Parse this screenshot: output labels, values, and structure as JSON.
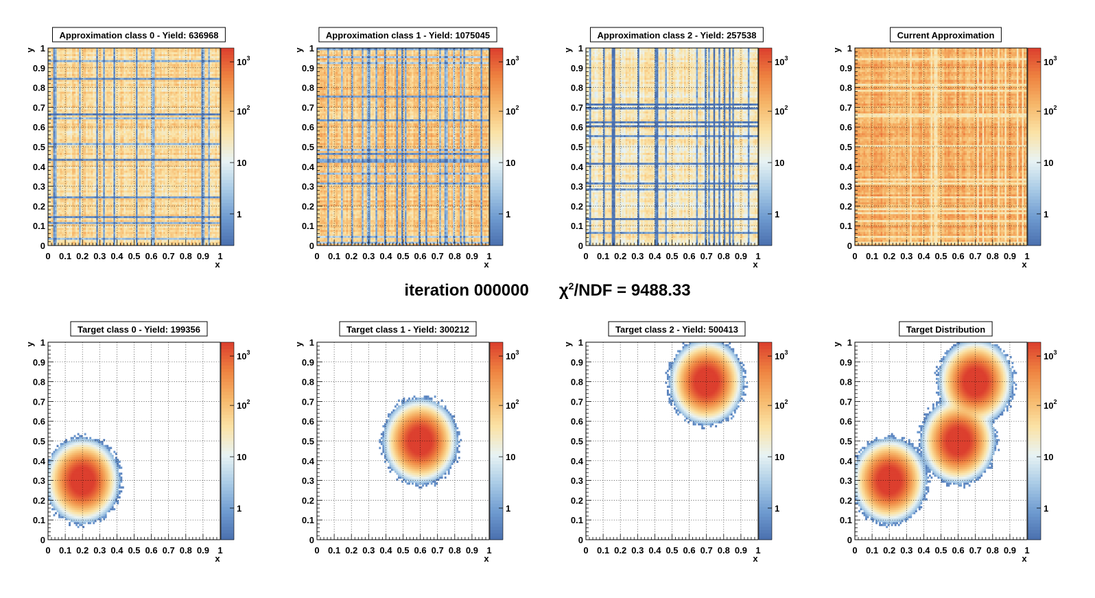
{
  "header": {
    "iteration_text": "iteration 000000",
    "chi_prefix": "χ",
    "chi_sup": "2",
    "chi_suffix": "/NDF = 9488.33"
  },
  "colors": {
    "palette": [
      "#4a6fae",
      "#6f9bd0",
      "#a9cbe6",
      "#e8f3f4",
      "#fbe3a6",
      "#f6b76a",
      "#ee8240",
      "#dc3f2e"
    ]
  },
  "chart_data": [
    {
      "type": "heatmap",
      "title": "Approximation class 0 - Yield: 636968",
      "xlabel": "x",
      "ylabel": "y",
      "xlim": [
        0,
        1
      ],
      "ylim": [
        0,
        1
      ],
      "xticks": [
        "0",
        "0.1",
        "0.2",
        "0.3",
        "0.4",
        "0.5",
        "0.6",
        "0.7",
        "0.8",
        "0.9",
        "1"
      ],
      "yticks": [
        "0",
        "0.1",
        "0.2",
        "0.3",
        "0.4",
        "0.5",
        "0.6",
        "0.7",
        "0.8",
        "0.9",
        "1"
      ],
      "z_scale": "log",
      "z_ticks": [
        "1",
        "10",
        "10",
        "10"
      ],
      "z_ticks_exp": [
        "",
        "",
        "2",
        "3"
      ],
      "grid": true,
      "content": "uniform random",
      "seed": 11,
      "level": 0.6
    },
    {
      "type": "heatmap",
      "title": "Approximation class 1 - Yield: 1075045",
      "xlabel": "x",
      "ylabel": "y",
      "xlim": [
        0,
        1
      ],
      "ylim": [
        0,
        1
      ],
      "xticks": [
        "0",
        "0.1",
        "0.2",
        "0.3",
        "0.4",
        "0.5",
        "0.6",
        "0.7",
        "0.8",
        "0.9",
        "1"
      ],
      "yticks": [
        "0",
        "0.1",
        "0.2",
        "0.3",
        "0.4",
        "0.5",
        "0.6",
        "0.7",
        "0.8",
        "0.9",
        "1"
      ],
      "z_scale": "log",
      "z_ticks": [
        "1",
        "10",
        "10",
        "10"
      ],
      "z_ticks_exp": [
        "",
        "",
        "2",
        "3"
      ],
      "grid": true,
      "content": "uniform random",
      "seed": 23,
      "level": 0.66
    },
    {
      "type": "heatmap",
      "title": "Approximation class 2 - Yield: 257538",
      "xlabel": "x",
      "ylabel": "y",
      "xlim": [
        0,
        1
      ],
      "ylim": [
        0,
        1
      ],
      "xticks": [
        "0",
        "0.1",
        "0.2",
        "0.3",
        "0.4",
        "0.5",
        "0.6",
        "0.7",
        "0.8",
        "0.9",
        "1"
      ],
      "yticks": [
        "0",
        "0.1",
        "0.2",
        "0.3",
        "0.4",
        "0.5",
        "0.6",
        "0.7",
        "0.8",
        "0.9",
        "1"
      ],
      "z_scale": "log",
      "z_ticks": [
        "1",
        "10",
        "10",
        "10"
      ],
      "z_ticks_exp": [
        "",
        "",
        "2",
        "3"
      ],
      "grid": true,
      "content": "uniform random",
      "seed": 37,
      "level": 0.52
    },
    {
      "type": "heatmap",
      "title": "Current Approximation",
      "xlabel": "x",
      "ylabel": "y",
      "xlim": [
        0,
        1
      ],
      "ylim": [
        0,
        1
      ],
      "xticks": [
        "0",
        "0.1",
        "0.2",
        "0.3",
        "0.4",
        "0.5",
        "0.6",
        "0.7",
        "0.8",
        "0.9",
        "1"
      ],
      "yticks": [
        "0",
        "0.1",
        "0.2",
        "0.3",
        "0.4",
        "0.5",
        "0.6",
        "0.7",
        "0.8",
        "0.9",
        "1"
      ],
      "z_scale": "log",
      "z_ticks": [
        "1",
        "10",
        "10",
        "10"
      ],
      "z_ticks_exp": [
        "",
        "",
        "2",
        "3"
      ],
      "grid": true,
      "content": "uniform random",
      "seed": 51,
      "level": 0.74
    },
    {
      "type": "heatmap",
      "title": "Target class 0 - Yield: 199356",
      "xlabel": "x",
      "ylabel": "y",
      "xlim": [
        0,
        1
      ],
      "ylim": [
        0,
        1
      ],
      "xticks": [
        "0",
        "0.1",
        "0.2",
        "0.3",
        "0.4",
        "0.5",
        "0.6",
        "0.7",
        "0.8",
        "0.9",
        "1"
      ],
      "yticks": [
        "0",
        "0.1",
        "0.2",
        "0.3",
        "0.4",
        "0.5",
        "0.6",
        "0.7",
        "0.8",
        "0.9",
        "1"
      ],
      "z_scale": "log",
      "z_ticks": [
        "1",
        "10",
        "10",
        "10"
      ],
      "z_ticks_exp": [
        "",
        "",
        "2",
        "3"
      ],
      "grid": true,
      "content": "gaussian blobs",
      "blobs": [
        {
          "x": 0.2,
          "y": 0.3
        }
      ]
    },
    {
      "type": "heatmap",
      "title": "Target class 1 - Yield: 300212",
      "xlabel": "x",
      "ylabel": "y",
      "xlim": [
        0,
        1
      ],
      "ylim": [
        0,
        1
      ],
      "xticks": [
        "0",
        "0.1",
        "0.2",
        "0.3",
        "0.4",
        "0.5",
        "0.6",
        "0.7",
        "0.8",
        "0.9",
        "1"
      ],
      "yticks": [
        "0",
        "0.1",
        "0.2",
        "0.3",
        "0.4",
        "0.5",
        "0.6",
        "0.7",
        "0.8",
        "0.9",
        "1"
      ],
      "z_scale": "log",
      "z_ticks": [
        "1",
        "10",
        "10",
        "10"
      ],
      "z_ticks_exp": [
        "",
        "",
        "2",
        "3"
      ],
      "grid": true,
      "content": "gaussian blobs",
      "blobs": [
        {
          "x": 0.6,
          "y": 0.5
        }
      ]
    },
    {
      "type": "heatmap",
      "title": "Target class 2 - Yield: 500413",
      "xlabel": "x",
      "ylabel": "y",
      "xlim": [
        0,
        1
      ],
      "ylim": [
        0,
        1
      ],
      "xticks": [
        "0",
        "0.1",
        "0.2",
        "0.3",
        "0.4",
        "0.5",
        "0.6",
        "0.7",
        "0.8",
        "0.9",
        "1"
      ],
      "yticks": [
        "0",
        "0.1",
        "0.2",
        "0.3",
        "0.4",
        "0.5",
        "0.6",
        "0.7",
        "0.8",
        "0.9",
        "1"
      ],
      "z_scale": "log",
      "z_ticks": [
        "1",
        "10",
        "10",
        "10"
      ],
      "z_ticks_exp": [
        "",
        "",
        "2",
        "3"
      ],
      "grid": true,
      "content": "gaussian blobs",
      "blobs": [
        {
          "x": 0.7,
          "y": 0.8
        }
      ]
    },
    {
      "type": "heatmap",
      "title": "Target Distribution",
      "xlabel": "x",
      "ylabel": "y",
      "xlim": [
        0,
        1
      ],
      "ylim": [
        0,
        1
      ],
      "xticks": [
        "0",
        "0.1",
        "0.2",
        "0.3",
        "0.4",
        "0.5",
        "0.6",
        "0.7",
        "0.8",
        "0.9",
        "1"
      ],
      "yticks": [
        "0",
        "0.1",
        "0.2",
        "0.3",
        "0.4",
        "0.5",
        "0.6",
        "0.7",
        "0.8",
        "0.9",
        "1"
      ],
      "z_scale": "log",
      "z_ticks": [
        "1",
        "10",
        "10",
        "10"
      ],
      "z_ticks_exp": [
        "",
        "",
        "2",
        "3"
      ],
      "grid": true,
      "content": "gaussian blobs",
      "blobs": [
        {
          "x": 0.2,
          "y": 0.3
        },
        {
          "x": 0.6,
          "y": 0.5
        },
        {
          "x": 0.7,
          "y": 0.8
        }
      ]
    }
  ]
}
